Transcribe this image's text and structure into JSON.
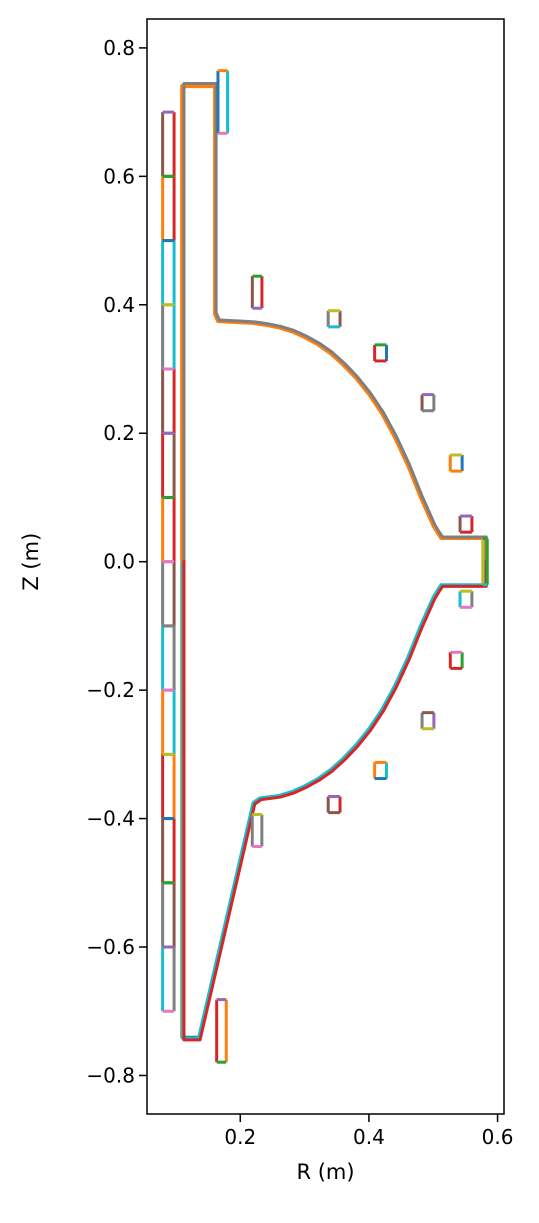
{
  "chart_data": {
    "type": "line",
    "xlabel": "R (m)",
    "ylabel": "Z (m)",
    "xlim": [
      0.055,
      0.61
    ],
    "ylim": [
      -0.86,
      0.845
    ],
    "xticks": [
      0.2,
      0.4,
      0.6
    ],
    "yticks": [
      0.8,
      0.6,
      0.4,
      0.2,
      0.0,
      -0.2,
      -0.4,
      -0.6,
      -0.8
    ],
    "xtick_labels": [
      "0.2",
      "0.4",
      "0.6"
    ],
    "ytick_labels": [
      "0.8",
      "0.6",
      "0.4",
      "0.2",
      "0.0",
      "−0.2",
      "−0.4",
      "−0.6",
      "−0.8"
    ],
    "grid": false,
    "palette": [
      "#1f77b4",
      "#ff7f0e",
      "#2ca02c",
      "#d62728",
      "#9467bd",
      "#8c564b",
      "#e377c2",
      "#7f7f7f",
      "#bcbd22",
      "#17becf"
    ],
    "wall_upper": {
      "colors": [
        "#ff7f0e",
        "#7f7f7f"
      ],
      "points": [
        [
          0.11,
          0.0
        ],
        [
          0.11,
          0.742
        ],
        [
          0.16,
          0.742
        ],
        [
          0.16,
          0.385
        ],
        [
          0.165,
          0.374
        ],
        [
          0.18,
          0.373
        ],
        [
          0.2,
          0.372
        ],
        [
          0.22,
          0.371
        ],
        [
          0.24,
          0.368
        ],
        [
          0.26,
          0.364
        ],
        [
          0.28,
          0.358
        ],
        [
          0.3,
          0.349
        ],
        [
          0.32,
          0.338
        ],
        [
          0.34,
          0.324
        ],
        [
          0.36,
          0.306
        ],
        [
          0.38,
          0.285
        ],
        [
          0.4,
          0.26
        ],
        [
          0.42,
          0.23
        ],
        [
          0.44,
          0.193
        ],
        [
          0.46,
          0.15
        ],
        [
          0.48,
          0.1
        ],
        [
          0.5,
          0.055
        ],
        [
          0.508,
          0.042
        ],
        [
          0.512,
          0.036
        ],
        [
          0.58,
          0.036
        ],
        [
          0.58,
          0.0
        ]
      ]
    },
    "wall_lower": {
      "colors": [
        "#17becf",
        "#d62728"
      ],
      "points": [
        [
          0.11,
          0.0
        ],
        [
          0.11,
          -0.742
        ],
        [
          0.135,
          -0.742
        ],
        [
          0.22,
          -0.375
        ],
        [
          0.23,
          -0.368
        ],
        [
          0.26,
          -0.364
        ],
        [
          0.28,
          -0.358
        ],
        [
          0.3,
          -0.349
        ],
        [
          0.32,
          -0.338
        ],
        [
          0.34,
          -0.324
        ],
        [
          0.36,
          -0.306
        ],
        [
          0.38,
          -0.285
        ],
        [
          0.4,
          -0.26
        ],
        [
          0.42,
          -0.23
        ],
        [
          0.44,
          -0.193
        ],
        [
          0.46,
          -0.15
        ],
        [
          0.48,
          -0.1
        ],
        [
          0.5,
          -0.055
        ],
        [
          0.508,
          -0.042
        ],
        [
          0.512,
          -0.036
        ],
        [
          0.58,
          -0.036
        ],
        [
          0.58,
          0.0
        ]
      ]
    },
    "coils": [
      {
        "r": 0.1728,
        "z": 0.7158,
        "w": 0.0149,
        "h": 0.0975,
        "c": [
          "#1f77b4",
          "#17becf",
          "#ff7f0e",
          "#e377c2"
        ]
      },
      {
        "r": 0.1708,
        "z": -0.7306,
        "w": 0.0149,
        "h": 0.0975,
        "c": [
          "#d62728",
          "#ff7f0e",
          "#9467bd",
          "#2ca02c"
        ]
      },
      {
        "r": 0.2262,
        "z": 0.4196,
        "w": 0.0149,
        "h": 0.0499,
        "c": [
          "#8c564b",
          "#d62728",
          "#2ca02c",
          "#9467bd"
        ]
      },
      {
        "r": 0.2261,
        "z": -0.4186,
        "w": 0.0149,
        "h": 0.0499,
        "c": [
          "#7f7f7f",
          "#7f7f7f",
          "#bcbd22",
          "#e377c2"
        ]
      },
      {
        "r": 0.3459,
        "z": 0.3782,
        "w": 0.0184,
        "h": 0.0251,
        "c": [
          "#7f7f7f",
          "#8c564b",
          "#bcbd22",
          "#17becf"
        ]
      },
      {
        "r": 0.3459,
        "z": -0.3782,
        "w": 0.0184,
        "h": 0.0251,
        "c": [
          "#8c564b",
          "#d62728",
          "#9467bd",
          "#8c564b"
        ]
      },
      {
        "r": 0.4181,
        "z": 0.3251,
        "w": 0.0184,
        "h": 0.0251,
        "c": [
          "#d62728",
          "#1f77b4",
          "#2ca02c",
          "#d62728"
        ]
      },
      {
        "r": 0.4181,
        "z": -0.3251,
        "w": 0.0184,
        "h": 0.0251,
        "c": [
          "#ff7f0e",
          "#17becf",
          "#ff7f0e",
          "#1f77b4"
        ]
      },
      {
        "r": 0.4918,
        "z": 0.2476,
        "w": 0.0184,
        "h": 0.0251,
        "c": [
          "#8c564b",
          "#7f7f7f",
          "#9467bd",
          "#7f7f7f"
        ]
      },
      {
        "r": 0.4918,
        "z": -0.2476,
        "w": 0.0184,
        "h": 0.0251,
        "c": [
          "#7f7f7f",
          "#9467bd",
          "#8c564b",
          "#bcbd22"
        ]
      },
      {
        "r": 0.5357,
        "z": 0.1536,
        "w": 0.0184,
        "h": 0.0251,
        "c": [
          "#ff7f0e",
          "#1f77b4",
          "#bcbd22",
          "#ff7f0e"
        ]
      },
      {
        "r": 0.5357,
        "z": -0.1536,
        "w": 0.0184,
        "h": 0.0251,
        "c": [
          "#d62728",
          "#2ca02c",
          "#e377c2",
          "#d62728"
        ]
      },
      {
        "r": 0.5509,
        "z": 0.0585,
        "w": 0.0184,
        "h": 0.0251,
        "c": [
          "#8c564b",
          "#d62728",
          "#9467bd",
          "#d62728"
        ]
      },
      {
        "r": 0.5509,
        "z": -0.0585,
        "w": 0.0184,
        "h": 0.0251,
        "c": [
          "#17becf",
          "#7f7f7f",
          "#bcbd22",
          "#e377c2"
        ]
      },
      {
        "r": 0.5805,
        "z": 0.0,
        "w": 0.0069,
        "h": 0.072,
        "c": [
          "#bcbd22",
          "#2ca02c",
          "#2ca02c",
          "#17becf"
        ]
      }
    ],
    "stacked_coil_column": {
      "r": 0.0882,
      "w": 0.0178,
      "segments": [
        {
          "z0": 0.6,
          "z1": 0.7,
          "c": [
            "#8c564b",
            "#d62728",
            "#9467bd",
            "#2ca02c"
          ]
        },
        {
          "z0": 0.5,
          "z1": 0.6,
          "c": [
            "#ff7f0e",
            "#d62728",
            "#2ca02c",
            "#1f77b4"
          ]
        },
        {
          "z0": 0.4,
          "z1": 0.5,
          "c": [
            "#17becf",
            "#17becf",
            "#1f77b4",
            "#bcbd22"
          ]
        },
        {
          "z0": 0.3,
          "z1": 0.4,
          "c": [
            "#7f7f7f",
            "#17becf",
            "#bcbd22",
            "#e377c2"
          ]
        },
        {
          "z0": 0.2,
          "z1": 0.3,
          "c": [
            "#8c564b",
            "#d62728",
            "#e377c2",
            "#9467bd"
          ]
        },
        {
          "z0": 0.1,
          "z1": 0.2,
          "c": [
            "#d62728",
            "#8c564b",
            "#9467bd",
            "#2ca02c"
          ]
        },
        {
          "z0": 0.0,
          "z1": 0.1,
          "c": [
            "#ff7f0e",
            "#d62728",
            "#2ca02c",
            "#e377c2"
          ]
        },
        {
          "z0": -0.1,
          "z1": 0.0,
          "c": [
            "#7f7f7f",
            "#8c564b",
            "#e377c2",
            "#7f7f7f"
          ]
        },
        {
          "z0": -0.2,
          "z1": -0.1,
          "c": [
            "#17becf",
            "#7f7f7f",
            "#7f7f7f",
            "#e377c2"
          ]
        },
        {
          "z0": -0.3,
          "z1": -0.2,
          "c": [
            "#ff7f0e",
            "#17becf",
            "#e377c2",
            "#bcbd22"
          ]
        },
        {
          "z0": -0.4,
          "z1": -0.3,
          "c": [
            "#d62728",
            "#ff7f0e",
            "#bcbd22",
            "#1f77b4"
          ]
        },
        {
          "z0": -0.5,
          "z1": -0.4,
          "c": [
            "#8c564b",
            "#d62728",
            "#1f77b4",
            "#2ca02c"
          ]
        },
        {
          "z0": -0.6,
          "z1": -0.5,
          "c": [
            "#7f7f7f",
            "#8c564b",
            "#2ca02c",
            "#9467bd"
          ]
        },
        {
          "z0": -0.7,
          "z1": -0.6,
          "c": [
            "#17becf",
            "#7f7f7f",
            "#9467bd",
            "#e377c2"
          ]
        }
      ]
    },
    "central_rail": {
      "r": 0.1104,
      "z0": -0.742,
      "z1": 0.742,
      "c": [
        "#ff7f0e",
        "#d62728"
      ]
    },
    "passive_plates": [
      {
        "r0": 0.112,
        "r1": 0.16,
        "z": 0.742,
        "c": [
          "#e377c2",
          "#ff7f0e"
        ]
      },
      {
        "r0": 0.112,
        "r1": 0.135,
        "z": -0.742,
        "c": [
          "#1f77b4",
          "#17becf"
        ]
      }
    ]
  }
}
